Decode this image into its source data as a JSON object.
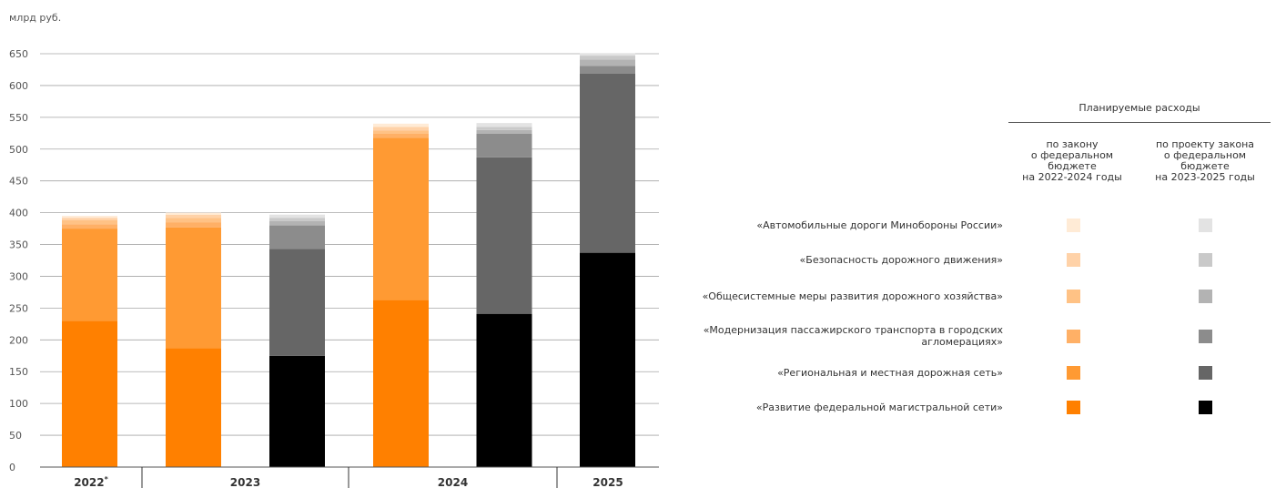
{
  "unit_label": "млрд руб.",
  "legend": {
    "title": "Планируемые расходы",
    "col_law": "по закону\nо федеральном\nбюджете\nна 2022-2024 годы",
    "col_project": "по проекту закона\nо федеральном\nбюджете\nна 2023-2025 годы"
  },
  "colors": {
    "law": [
      "#ff8000",
      "#ff9a33",
      "#ffb066",
      "#ffc285",
      "#ffd2a8",
      "#ffebd6"
    ],
    "project": [
      "#000000",
      "#666666",
      "#8c8c8c",
      "#b3b3b3",
      "#c9c9c9",
      "#e3e3e3"
    ]
  },
  "chart_data": {
    "type": "bar",
    "stacked": true,
    "ylabel": "млрд руб.",
    "ylim": [
      0,
      650
    ],
    "y_ticks": [
      0,
      50,
      100,
      150,
      200,
      250,
      300,
      350,
      400,
      450,
      500,
      550,
      600,
      650
    ],
    "grid": true,
    "groups": [
      {
        "label": "2022",
        "note": "*",
        "bars": [
          "2022-law"
        ]
      },
      {
        "label": "2023",
        "bars": [
          "2023-law",
          "2023-project"
        ]
      },
      {
        "label": "2024",
        "bars": [
          "2024-law",
          "2024-project"
        ]
      },
      {
        "label": "2025",
        "bars": [
          "2025-project"
        ]
      }
    ],
    "bars": [
      {
        "id": "2022-law",
        "palette": "law",
        "values": [
          230,
          145,
          7,
          6,
          4,
          3
        ]
      },
      {
        "id": "2023-law",
        "palette": "law",
        "values": [
          187,
          190,
          8,
          7,
          5,
          3
        ]
      },
      {
        "id": "2023-project",
        "palette": "project",
        "values": [
          175,
          168,
          37,
          7,
          5,
          5
        ]
      },
      {
        "id": "2024-law",
        "palette": "law",
        "values": [
          263,
          255,
          6,
          5,
          6,
          5
        ]
      },
      {
        "id": "2024-project",
        "palette": "project",
        "values": [
          241,
          246,
          37,
          6,
          5,
          6
        ]
      },
      {
        "id": "2025-project",
        "palette": "project",
        "values": [
          337,
          282,
          12,
          10,
          6,
          4
        ]
      }
    ],
    "series": [
      {
        "name": "«Развитие федеральной магистральной сети»"
      },
      {
        "name": "«Региональная и местная дорожная сеть»"
      },
      {
        "name": "«Модернизация пассажирского транспорта в городских агломерациях»"
      },
      {
        "name": "«Общесистемные меры развития дорожного хозяйства»"
      },
      {
        "name": "«Безопасность дорожного движения»"
      },
      {
        "name": "«Автомобильные дороги Минобороны России»"
      }
    ],
    "legend_position": "right"
  }
}
